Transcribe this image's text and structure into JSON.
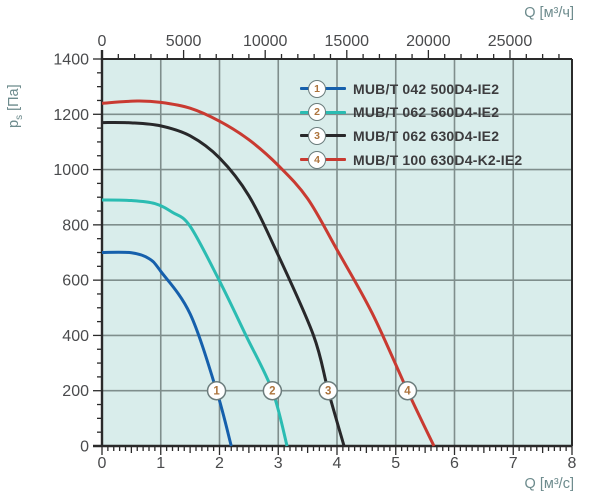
{
  "chart_data": {
    "type": "line",
    "title": "",
    "xlabel_bottom": "Q [м³/с]",
    "xlabel_top": "Q [м³/ч]",
    "ylabel_main": "p",
    "ylabel_sub": "s",
    "ylabel_unit": "[Па]",
    "axes": {
      "bottom": {
        "min": 0,
        "max": 8,
        "ticks": [
          0,
          1,
          2,
          3,
          4,
          5,
          6,
          7,
          8
        ],
        "minor_step": 0.1,
        "medium_step": 0.5
      },
      "top": {
        "unit_per_bottom": 3600,
        "ticks": [
          0,
          5000,
          10000,
          15000,
          20000,
          25000
        ],
        "minor_step": 1000,
        "minor_max": 28000
      },
      "left": {
        "min": 0,
        "max": 1400,
        "ticks": [
          0,
          200,
          400,
          600,
          800,
          1000,
          1200,
          1400
        ],
        "minor_step": 50
      }
    },
    "marker_y": 200,
    "series": [
      {
        "id": "1",
        "label": "MUB/T 042 500D4-IE2",
        "color": "#1660ac",
        "marker_x": 1.95,
        "points": [
          [
            0,
            700
          ],
          [
            0.5,
            699
          ],
          [
            0.8,
            678
          ],
          [
            1.0,
            632
          ],
          [
            1.5,
            478
          ],
          [
            1.95,
            200
          ],
          [
            2.2,
            0
          ]
        ]
      },
      {
        "id": "2",
        "label": "MUB/T 062 560D4-IE2",
        "color": "#2bbcb2",
        "marker_x": 2.9,
        "points": [
          [
            0,
            890
          ],
          [
            0.5,
            888
          ],
          [
            0.9,
            877
          ],
          [
            1.2,
            845
          ],
          [
            1.5,
            795
          ],
          [
            2.0,
            597
          ],
          [
            2.45,
            400
          ],
          [
            2.9,
            200
          ],
          [
            3.15,
            0
          ]
        ]
      },
      {
        "id": "3",
        "label": "MUB/T 062 630D4-IE2",
        "color": "#28282a",
        "marker_x": 3.85,
        "points": [
          [
            0,
            1170
          ],
          [
            0.5,
            1169
          ],
          [
            1.0,
            1158
          ],
          [
            1.5,
            1122
          ],
          [
            2.0,
            1042
          ],
          [
            2.5,
            905
          ],
          [
            3.0,
            690
          ],
          [
            3.6,
            400
          ],
          [
            3.85,
            200
          ],
          [
            4.12,
            0
          ]
        ]
      },
      {
        "id": "4",
        "label": "MUB/T 100 630D4-K2-IE2",
        "color": "#c93a31",
        "marker_x": 5.2,
        "points": [
          [
            0,
            1240
          ],
          [
            0.6,
            1248
          ],
          [
            1.0,
            1243
          ],
          [
            1.5,
            1222
          ],
          [
            2.0,
            1175
          ],
          [
            2.5,
            1108
          ],
          [
            3.0,
            1015
          ],
          [
            3.5,
            895
          ],
          [
            4.0,
            710
          ],
          [
            4.6,
            480
          ],
          [
            5.2,
            200
          ],
          [
            5.65,
            0
          ]
        ]
      }
    ]
  },
  "styles": {
    "plot_bg": "#d9edeb",
    "grid_color": "#7f8e8c",
    "axis_color": "#2a2a2a",
    "tick_label_color": "#4a4b4d",
    "axis_title_color": "#6d8b8d",
    "legend_text_color": "#3c3c3e",
    "marker_number_color": "#ad743d",
    "marker_border_color": "#6b7c7c"
  }
}
